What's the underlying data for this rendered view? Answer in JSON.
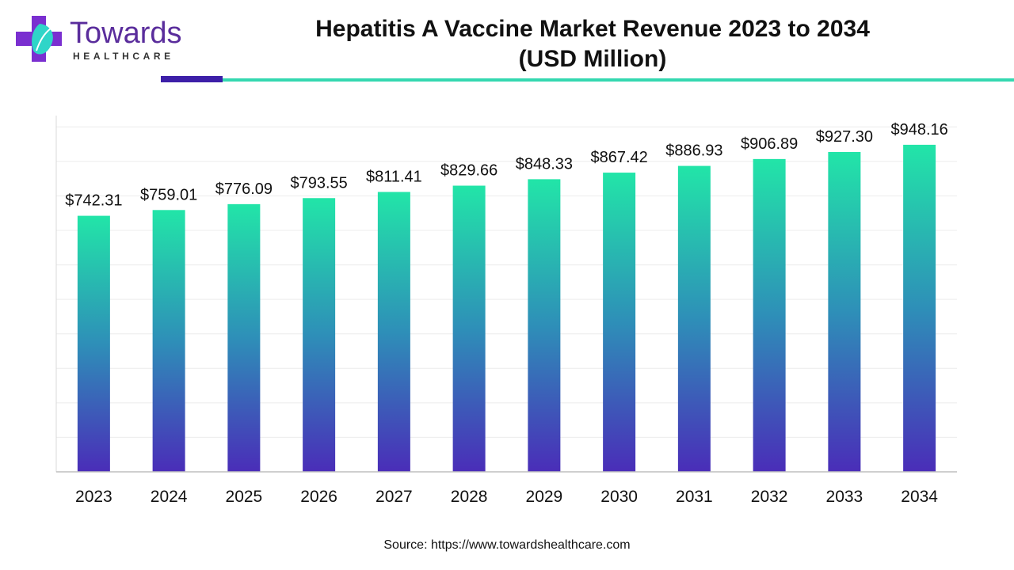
{
  "brand": {
    "name": "Towards",
    "sub": "HEALTHCARE"
  },
  "header": {
    "title_line1": "Hepatitis A Vaccine Market Revenue 2023 to 2034",
    "title_line2": "(USD Million)"
  },
  "colors": {
    "bar_top": "#22e5a8",
    "bar_mid": "#2e8fb8",
    "bar_bottom": "#4a2db8",
    "brand_purple": "#5a2d9c",
    "accent_teal": "#34d8b0"
  },
  "chart_data": {
    "type": "bar",
    "categories": [
      "2023",
      "2024",
      "2025",
      "2026",
      "2027",
      "2028",
      "2029",
      "2030",
      "2031",
      "2032",
      "2033",
      "2034"
    ],
    "values": [
      742.31,
      759.01,
      776.09,
      793.55,
      811.41,
      829.66,
      848.33,
      867.42,
      886.93,
      906.89,
      927.3,
      948.16
    ],
    "data_labels": [
      "$742.31",
      "$759.01",
      "$776.09",
      "$793.55",
      "$811.41",
      "$829.66",
      "$848.33",
      "$867.42",
      "$886.93",
      "$906.89",
      "$927.30",
      "$948.16"
    ],
    "title": "Hepatitis A Vaccine Market Revenue 2023 to 2034 (USD Million)",
    "xlabel": "",
    "ylabel": "",
    "ylim": [
      0,
      1000
    ],
    "grid": true,
    "legend": "none"
  },
  "footer": {
    "source": "Source: https://www.towardshealthcare.com"
  }
}
